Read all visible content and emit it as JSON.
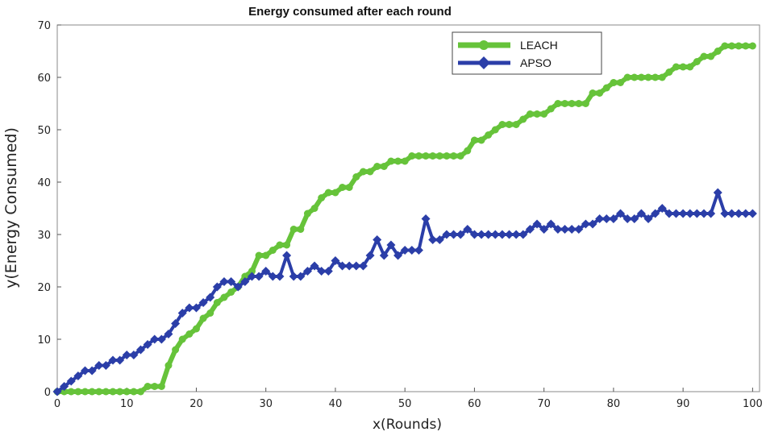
{
  "chart_data": {
    "type": "line",
    "title": "Energy consumed after each round",
    "xlabel": "x(Rounds)",
    "ylabel": "y(Energy Consumed)",
    "xlim": [
      0,
      101
    ],
    "ylim": [
      0,
      70
    ],
    "xticks": [
      0,
      10,
      20,
      30,
      40,
      50,
      60,
      70,
      80,
      90,
      100
    ],
    "yticks": [
      0,
      10,
      20,
      30,
      40,
      50,
      60,
      70
    ],
    "grid": false,
    "legend_position": "top-right",
    "series": [
      {
        "name": "LEACH",
        "color": "#66c33a",
        "marker": "circle",
        "points": [
          [
            0,
            0
          ],
          [
            1,
            0
          ],
          [
            2,
            0
          ],
          [
            3,
            0
          ],
          [
            4,
            0
          ],
          [
            5,
            0
          ],
          [
            6,
            0
          ],
          [
            7,
            0
          ],
          [
            8,
            0
          ],
          [
            9,
            0
          ],
          [
            10,
            0
          ],
          [
            11,
            0
          ],
          [
            12,
            0
          ],
          [
            13,
            1
          ],
          [
            14,
            1
          ],
          [
            15,
            1
          ],
          [
            16,
            5
          ],
          [
            17,
            8
          ],
          [
            18,
            10
          ],
          [
            19,
            11
          ],
          [
            20,
            12
          ],
          [
            21,
            14
          ],
          [
            22,
            15
          ],
          [
            23,
            17
          ],
          [
            24,
            18
          ],
          [
            25,
            19
          ],
          [
            26,
            20
          ],
          [
            27,
            22
          ],
          [
            28,
            23
          ],
          [
            29,
            26
          ],
          [
            30,
            26
          ],
          [
            31,
            27
          ],
          [
            32,
            28
          ],
          [
            33,
            28
          ],
          [
            34,
            31
          ],
          [
            35,
            31
          ],
          [
            36,
            34
          ],
          [
            37,
            35
          ],
          [
            38,
            37
          ],
          [
            39,
            38
          ],
          [
            40,
            38
          ],
          [
            41,
            39
          ],
          [
            42,
            39
          ],
          [
            43,
            41
          ],
          [
            44,
            42
          ],
          [
            45,
            42
          ],
          [
            46,
            43
          ],
          [
            47,
            43
          ],
          [
            48,
            44
          ],
          [
            49,
            44
          ],
          [
            50,
            44
          ],
          [
            51,
            45
          ],
          [
            52,
            45
          ],
          [
            53,
            45
          ],
          [
            54,
            45
          ],
          [
            55,
            45
          ],
          [
            56,
            45
          ],
          [
            57,
            45
          ],
          [
            58,
            45
          ],
          [
            59,
            46
          ],
          [
            60,
            48
          ],
          [
            61,
            48
          ],
          [
            62,
            49
          ],
          [
            63,
            50
          ],
          [
            64,
            51
          ],
          [
            65,
            51
          ],
          [
            66,
            51
          ],
          [
            67,
            52
          ],
          [
            68,
            53
          ],
          [
            69,
            53
          ],
          [
            70,
            53
          ],
          [
            71,
            54
          ],
          [
            72,
            55
          ],
          [
            73,
            55
          ],
          [
            74,
            55
          ],
          [
            75,
            55
          ],
          [
            76,
            55
          ],
          [
            77,
            57
          ],
          [
            78,
            57
          ],
          [
            79,
            58
          ],
          [
            80,
            59
          ],
          [
            81,
            59
          ],
          [
            82,
            60
          ],
          [
            83,
            60
          ],
          [
            84,
            60
          ],
          [
            85,
            60
          ],
          [
            86,
            60
          ],
          [
            87,
            60
          ],
          [
            88,
            61
          ],
          [
            89,
            62
          ],
          [
            90,
            62
          ],
          [
            91,
            62
          ],
          [
            92,
            63
          ],
          [
            93,
            64
          ],
          [
            94,
            64
          ],
          [
            95,
            65
          ],
          [
            96,
            66
          ],
          [
            97,
            66
          ],
          [
            98,
            66
          ],
          [
            99,
            66
          ],
          [
            100,
            66
          ]
        ]
      },
      {
        "name": "APSO",
        "color": "#2b3ea8",
        "marker": "diamond",
        "points": [
          [
            0,
            0
          ],
          [
            1,
            1
          ],
          [
            2,
            2
          ],
          [
            3,
            3
          ],
          [
            4,
            4
          ],
          [
            5,
            4
          ],
          [
            6,
            5
          ],
          [
            7,
            5
          ],
          [
            8,
            6
          ],
          [
            9,
            6
          ],
          [
            10,
            7
          ],
          [
            11,
            7
          ],
          [
            12,
            8
          ],
          [
            13,
            9
          ],
          [
            14,
            10
          ],
          [
            15,
            10
          ],
          [
            16,
            11
          ],
          [
            17,
            13
          ],
          [
            18,
            15
          ],
          [
            19,
            16
          ],
          [
            20,
            16
          ],
          [
            21,
            17
          ],
          [
            22,
            18
          ],
          [
            23,
            20
          ],
          [
            24,
            21
          ],
          [
            25,
            21
          ],
          [
            26,
            20
          ],
          [
            27,
            21
          ],
          [
            28,
            22
          ],
          [
            29,
            22
          ],
          [
            30,
            23
          ],
          [
            31,
            22
          ],
          [
            32,
            22
          ],
          [
            33,
            26
          ],
          [
            34,
            22
          ],
          [
            35,
            22
          ],
          [
            36,
            23
          ],
          [
            37,
            24
          ],
          [
            38,
            23
          ],
          [
            39,
            23
          ],
          [
            40,
            25
          ],
          [
            41,
            24
          ],
          [
            42,
            24
          ],
          [
            43,
            24
          ],
          [
            44,
            24
          ],
          [
            45,
            26
          ],
          [
            46,
            29
          ],
          [
            47,
            26
          ],
          [
            48,
            28
          ],
          [
            49,
            26
          ],
          [
            50,
            27
          ],
          [
            51,
            27
          ],
          [
            52,
            27
          ],
          [
            53,
            33
          ],
          [
            54,
            29
          ],
          [
            55,
            29
          ],
          [
            56,
            30
          ],
          [
            57,
            30
          ],
          [
            58,
            30
          ],
          [
            59,
            31
          ],
          [
            60,
            30
          ],
          [
            61,
            30
          ],
          [
            62,
            30
          ],
          [
            63,
            30
          ],
          [
            64,
            30
          ],
          [
            65,
            30
          ],
          [
            66,
            30
          ],
          [
            67,
            30
          ],
          [
            68,
            31
          ],
          [
            69,
            32
          ],
          [
            70,
            31
          ],
          [
            71,
            32
          ],
          [
            72,
            31
          ],
          [
            73,
            31
          ],
          [
            74,
            31
          ],
          [
            75,
            31
          ],
          [
            76,
            32
          ],
          [
            77,
            32
          ],
          [
            78,
            33
          ],
          [
            79,
            33
          ],
          [
            80,
            33
          ],
          [
            81,
            34
          ],
          [
            82,
            33
          ],
          [
            83,
            33
          ],
          [
            84,
            34
          ],
          [
            85,
            33
          ],
          [
            86,
            34
          ],
          [
            87,
            35
          ],
          [
            88,
            34
          ],
          [
            89,
            34
          ],
          [
            90,
            34
          ],
          [
            91,
            34
          ],
          [
            92,
            34
          ],
          [
            93,
            34
          ],
          [
            94,
            34
          ],
          [
            95,
            38
          ],
          [
            96,
            34
          ],
          [
            97,
            34
          ],
          [
            98,
            34
          ],
          [
            99,
            34
          ],
          [
            100,
            34
          ]
        ]
      }
    ]
  }
}
